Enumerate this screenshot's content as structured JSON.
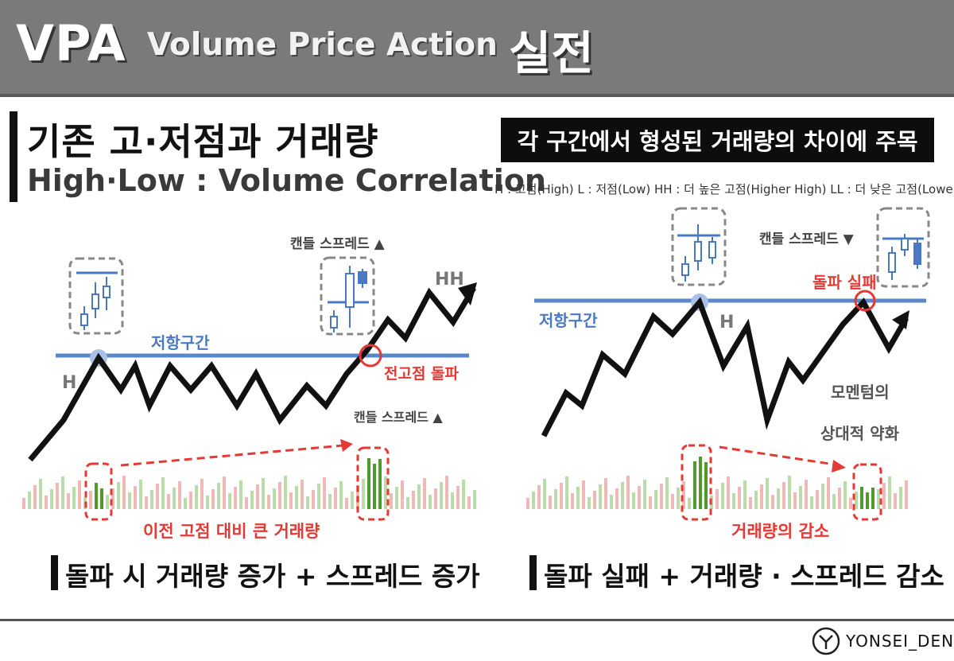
{
  "header": {
    "vpa": "VPA",
    "subtitle": "Volume Price Action",
    "korean": "실전"
  },
  "left": {
    "heading": "기존 고·저점과 거래량",
    "subheading": "High·Low : Volume Correlation",
    "resistance_label": "저항구간",
    "h_label": "H",
    "hh_label": "HH",
    "candle_spread_up_top": "캔들 스프레드 ▲",
    "candle_spread_up_mid": "캔들 스프레드 ▲",
    "breakout_label": "전고점 돌파",
    "volume_note": "이전 고점 대비 큰 거래량",
    "conclusion": "돌파 시 거래량 증가 + 스프레드 증가"
  },
  "right": {
    "banner": "각 구간에서 형성된 거래량의 차이에 주목",
    "legend": "H : 고점(High)  L : 저점(Low)  HH : 더 높은 고점(Higher High)  LL : 더 낮은 고점(Lower Low)",
    "resistance_label": "저항구간",
    "h_label": "H",
    "candle_spread_down": "캔들 스프레드 ▼",
    "fail_label": "돌파 실패",
    "momentum_line1": "모멘텀의",
    "momentum_line2": "상대적 약화",
    "volume_note": "거래량의 감소",
    "conclusion": "돌파 실패 + 거래량 · 스프레드 감소"
  },
  "footer": {
    "brand": "YONSEI_DENT"
  },
  "colors": {
    "resistance": "#5b86c9",
    "highlight_red": "#e53935",
    "volume_green": "#4e9a2e",
    "volume_pink": "#f2b8b8",
    "volume_lightgreen": "#b9dca8"
  }
}
